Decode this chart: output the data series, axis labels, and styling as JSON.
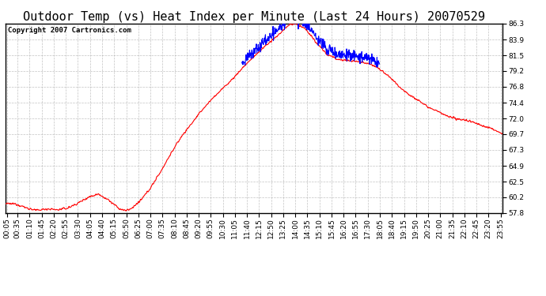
{
  "title": "Outdoor Temp (vs) Heat Index per Minute (Last 24 Hours) 20070529",
  "copyright": "Copyright 2007 Cartronics.com",
  "yticks": [
    57.8,
    60.2,
    62.5,
    64.9,
    67.3,
    69.7,
    72.0,
    74.4,
    76.8,
    79.2,
    81.5,
    83.9,
    86.3
  ],
  "ymin": 57.8,
  "ymax": 86.3,
  "bg_color": "#ffffff",
  "plot_bg_color": "#ffffff",
  "grid_color": "#aaaaaa",
  "line_color_red": "#ff0000",
  "line_color_blue": "#0000ff",
  "title_fontsize": 11,
  "tick_fontsize": 6.5,
  "copyright_fontsize": 6.5,
  "xtick_labels": [
    "00:05",
    "00:35",
    "01:10",
    "01:45",
    "02:20",
    "02:55",
    "03:30",
    "04:05",
    "04:40",
    "05:15",
    "05:50",
    "06:25",
    "07:00",
    "07:35",
    "08:10",
    "08:45",
    "09:20",
    "09:55",
    "10:30",
    "11:05",
    "11:40",
    "12:15",
    "12:50",
    "13:25",
    "14:00",
    "14:35",
    "15:10",
    "15:45",
    "16:20",
    "16:55",
    "17:30",
    "18:05",
    "18:40",
    "19:15",
    "19:50",
    "20:25",
    "21:00",
    "21:35",
    "22:10",
    "22:45",
    "23:20",
    "23:55"
  ]
}
